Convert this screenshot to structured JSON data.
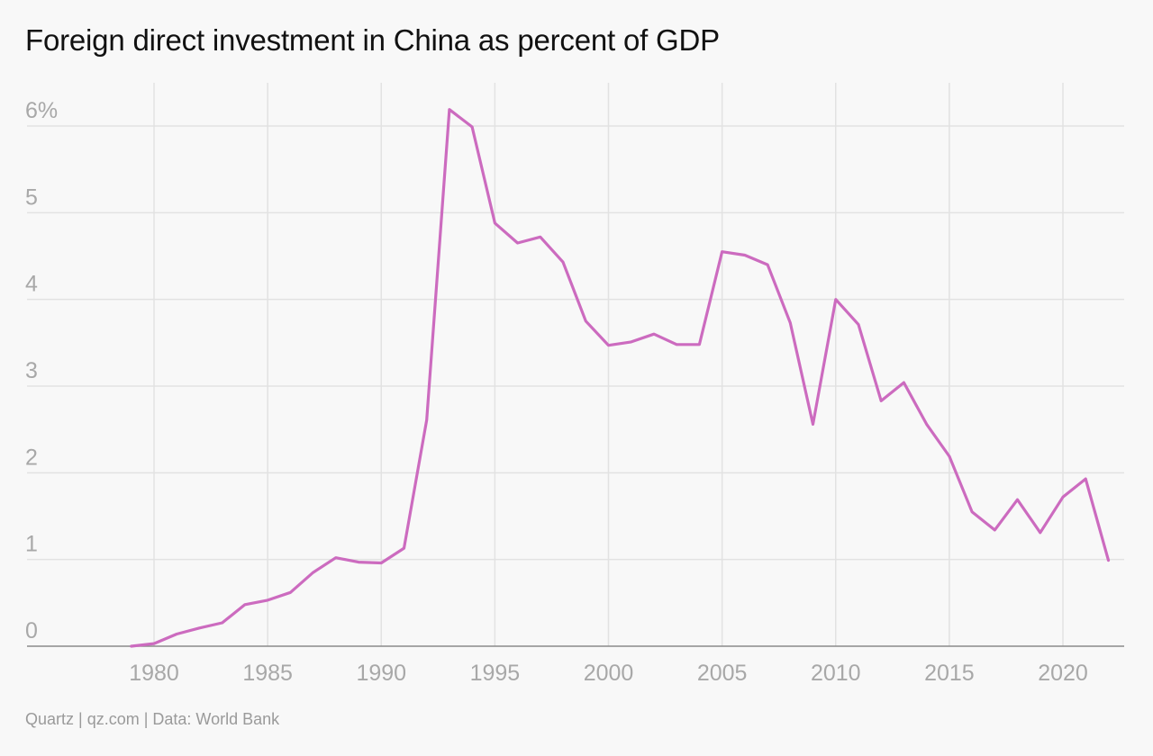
{
  "chart_data": {
    "type": "line",
    "title": "Foreign direct investment in China as percent of GDP",
    "source": "Quartz | qz.com | Data: World Bank",
    "xlabel": "",
    "ylabel": "",
    "xlim": [
      1975,
      2023
    ],
    "ylim": [
      0,
      6.5
    ],
    "grid": true,
    "x_ticks": [
      1980,
      1985,
      1990,
      1995,
      2000,
      2005,
      2010,
      2015,
      2020
    ],
    "x_tick_labels": [
      "1980",
      "1985",
      "1990",
      "1995",
      "2000",
      "2005",
      "2010",
      "2015",
      "2020"
    ],
    "y_ticks": [
      0,
      1,
      2,
      3,
      4,
      5,
      6
    ],
    "y_tick_labels": [
      "0",
      "1",
      "2",
      "3",
      "4",
      "5",
      "6%"
    ],
    "series": [
      {
        "color": "#cc6bbf",
        "x": [
          1979,
          1980,
          1981,
          1982,
          1983,
          1984,
          1985,
          1986,
          1987,
          1988,
          1989,
          1990,
          1991,
          1992,
          1993,
          1994,
          1995,
          1996,
          1997,
          1998,
          1999,
          2000,
          2001,
          2002,
          2003,
          2004,
          2005,
          2006,
          2007,
          2008,
          2009,
          2010,
          2011,
          2012,
          2013,
          2014,
          2015,
          2016,
          2017,
          2018,
          2019,
          2020,
          2021,
          2022
        ],
        "values": [
          0.0,
          0.03,
          0.14,
          0.21,
          0.27,
          0.48,
          0.53,
          0.62,
          0.85,
          1.02,
          0.97,
          0.96,
          1.13,
          2.61,
          6.19,
          5.99,
          4.88,
          4.65,
          4.72,
          4.43,
          3.75,
          3.47,
          3.51,
          3.6,
          3.48,
          3.48,
          4.55,
          4.51,
          4.4,
          3.73,
          2.56,
          4.0,
          3.71,
          2.83,
          3.04,
          2.56,
          2.19,
          1.55,
          1.34,
          1.69,
          1.31,
          1.72,
          1.93,
          0.99
        ]
      }
    ]
  }
}
